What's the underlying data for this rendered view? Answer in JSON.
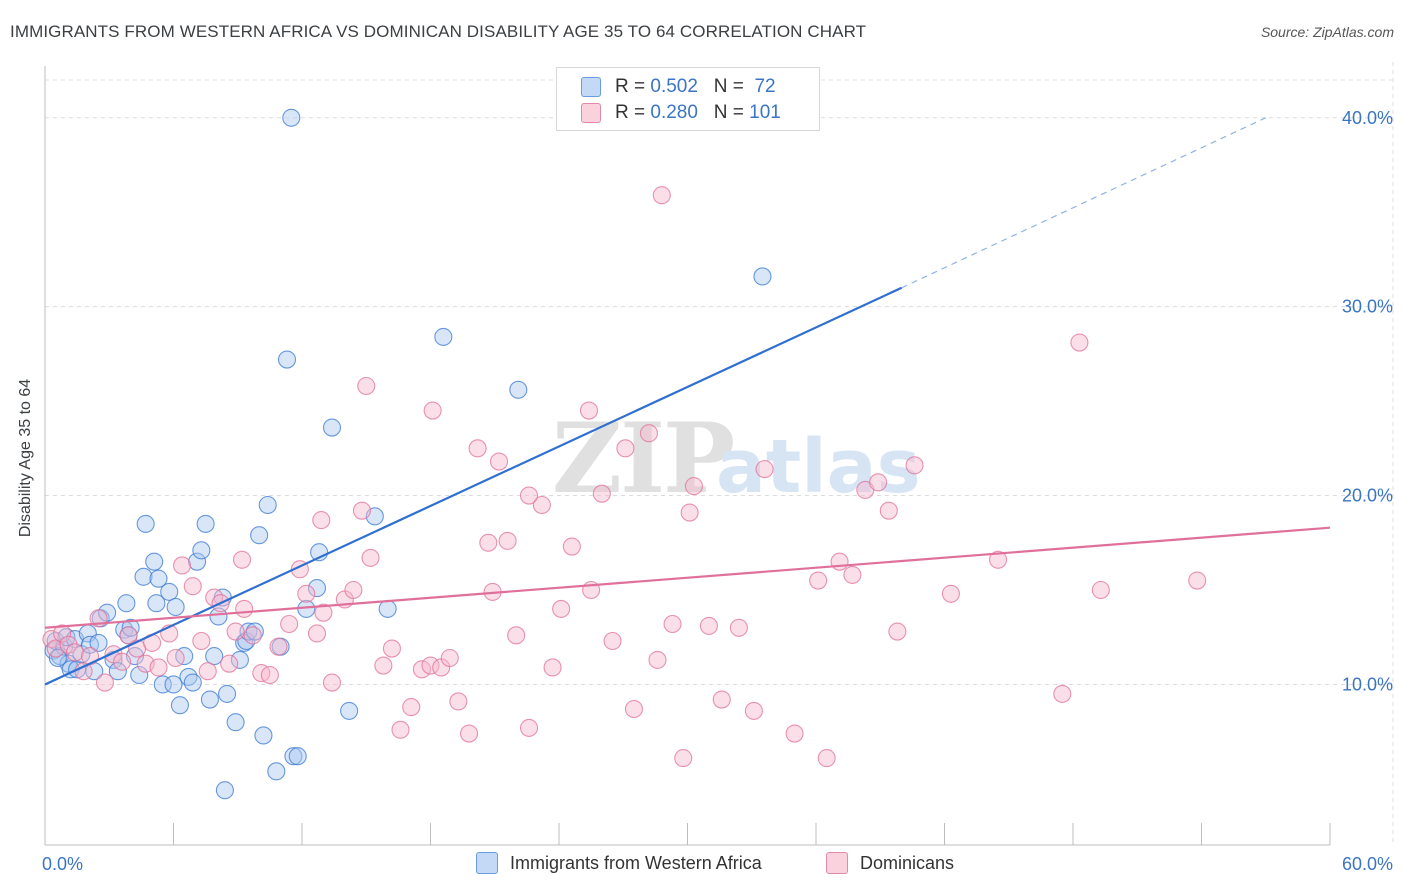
{
  "header": {
    "title": "IMMIGRANTS FROM WESTERN AFRICA VS DOMINICAN DISABILITY AGE 35 TO 64 CORRELATION CHART",
    "source": "Source: ZipAtlas.com"
  },
  "legend_top": {
    "rows": [
      {
        "r_label": "R =",
        "r_value": "0.502",
        "n_label": "N =",
        "n_value": "72",
        "color": "#a8c8f0"
      },
      {
        "r_label": "R =",
        "r_value": "0.280",
        "n_label": "N =",
        "n_value": "101",
        "color": "#f6b9cc"
      }
    ]
  },
  "legend_bottom": {
    "items": [
      {
        "label": "Immigrants from Western Africa",
        "color": "#a8c8f0"
      },
      {
        "label": "Dominicans",
        "color": "#f6b9cc"
      }
    ]
  },
  "watermark": {
    "zip": "ZIP",
    "atlas": "atlas"
  },
  "chart_data": {
    "type": "scatter",
    "title": "IMMIGRANTS FROM WESTERN AFRICA VS DOMINICAN DISABILITY AGE 35 TO 64 CORRELATION CHART",
    "xlabel": "",
    "ylabel": "Disability Age 35 to 64",
    "xlim": [
      0,
      60
    ],
    "ylim": [
      1.5,
      42.0
    ],
    "x_tick_labels": [
      "0.0%",
      "60.0%"
    ],
    "y_ticks": [
      10,
      20,
      30,
      40
    ],
    "y_tick_labels": [
      "10.0%",
      "20.0%",
      "30.0%",
      "40.0%"
    ],
    "grid": true,
    "legend_position": "bottom",
    "series": [
      {
        "name": "Immigrants from Western Africa",
        "color": "#3a78d4",
        "fill": "#a8c8f0",
        "r": 0.502,
        "n": 72,
        "trend": {
          "x0": 0,
          "y0": 10.0,
          "x1": 40.0,
          "y1": 31.0,
          "dash_x1": 57.0,
          "dash_y1": 40.0
        },
        "points": [
          [
            0.4,
            11.8
          ],
          [
            0.5,
            12.3
          ],
          [
            0.7,
            11.5
          ],
          [
            0.9,
            12.0
          ],
          [
            1.0,
            12.5
          ],
          [
            1.1,
            11.1
          ],
          [
            1.2,
            10.8
          ],
          [
            1.4,
            12.4
          ],
          [
            1.5,
            10.8
          ],
          [
            1.7,
            11.6
          ],
          [
            2.0,
            12.7
          ],
          [
            2.1,
            12.1
          ],
          [
            2.3,
            10.7
          ],
          [
            2.6,
            13.5
          ],
          [
            2.9,
            13.8
          ],
          [
            3.2,
            11.3
          ],
          [
            3.4,
            10.7
          ],
          [
            3.7,
            12.9
          ],
          [
            3.8,
            14.3
          ],
          [
            3.9,
            12.6
          ],
          [
            4.2,
            11.5
          ],
          [
            4.4,
            10.5
          ],
          [
            4.6,
            15.7
          ],
          [
            4.7,
            18.5
          ],
          [
            5.1,
            16.5
          ],
          [
            5.2,
            14.3
          ],
          [
            5.3,
            15.6
          ],
          [
            5.5,
            10.0
          ],
          [
            5.8,
            14.9
          ],
          [
            6.0,
            10.0
          ],
          [
            6.1,
            14.1
          ],
          [
            6.3,
            8.9
          ],
          [
            6.5,
            11.5
          ],
          [
            6.7,
            10.4
          ],
          [
            6.9,
            10.1
          ],
          [
            7.1,
            16.5
          ],
          [
            7.3,
            17.1
          ],
          [
            7.5,
            18.5
          ],
          [
            7.7,
            9.2
          ],
          [
            7.9,
            11.5
          ],
          [
            8.1,
            13.6
          ],
          [
            8.3,
            14.6
          ],
          [
            8.5,
            9.5
          ],
          [
            8.9,
            8.0
          ],
          [
            9.1,
            11.3
          ],
          [
            9.3,
            12.2
          ],
          [
            9.4,
            12.3
          ],
          [
            9.5,
            12.8
          ],
          [
            9.8,
            12.8
          ],
          [
            10.0,
            17.9
          ],
          [
            10.2,
            7.3
          ],
          [
            10.4,
            19.5
          ],
          [
            10.8,
            5.4
          ],
          [
            11.0,
            12.0
          ],
          [
            11.3,
            27.2
          ],
          [
            11.6,
            6.2
          ],
          [
            11.8,
            6.2
          ],
          [
            12.2,
            14.0
          ],
          [
            12.7,
            15.1
          ],
          [
            12.8,
            17.0
          ],
          [
            13.4,
            23.6
          ],
          [
            14.2,
            8.6
          ],
          [
            15.4,
            18.9
          ],
          [
            16.0,
            14.0
          ],
          [
            11.5,
            40.0
          ],
          [
            18.6,
            28.4
          ],
          [
            22.1,
            25.6
          ],
          [
            8.4,
            4.4
          ],
          [
            4.0,
            13.0
          ],
          [
            33.5,
            31.6
          ],
          [
            0.6,
            11.4
          ],
          [
            2.5,
            12.2
          ]
        ]
      },
      {
        "name": "Dominicans",
        "color": "#e0709a",
        "fill": "#f6b9cc",
        "r": 0.28,
        "n": 101,
        "trend": {
          "x0": 0,
          "y0": 13.0,
          "x1": 60.0,
          "y1": 18.3
        },
        "points": [
          [
            0.3,
            12.4
          ],
          [
            0.5,
            11.9
          ],
          [
            0.8,
            12.7
          ],
          [
            1.1,
            12.1
          ],
          [
            1.4,
            11.7
          ],
          [
            1.8,
            10.7
          ],
          [
            2.1,
            11.5
          ],
          [
            2.5,
            13.5
          ],
          [
            2.8,
            10.1
          ],
          [
            3.2,
            11.6
          ],
          [
            3.6,
            11.2
          ],
          [
            3.9,
            12.6
          ],
          [
            4.3,
            11.9
          ],
          [
            4.7,
            11.1
          ],
          [
            5.0,
            12.2
          ],
          [
            5.3,
            10.9
          ],
          [
            5.8,
            12.7
          ],
          [
            6.1,
            11.4
          ],
          [
            6.4,
            16.3
          ],
          [
            6.9,
            15.2
          ],
          [
            7.3,
            12.3
          ],
          [
            7.6,
            10.7
          ],
          [
            7.9,
            14.6
          ],
          [
            8.2,
            14.3
          ],
          [
            8.6,
            11.1
          ],
          [
            8.9,
            12.8
          ],
          [
            9.2,
            16.6
          ],
          [
            9.3,
            14.0
          ],
          [
            9.7,
            12.6
          ],
          [
            10.1,
            10.6
          ],
          [
            10.5,
            10.5
          ],
          [
            10.9,
            12.0
          ],
          [
            11.4,
            13.2
          ],
          [
            11.9,
            16.1
          ],
          [
            12.2,
            14.8
          ],
          [
            12.7,
            12.7
          ],
          [
            13.0,
            13.8
          ],
          [
            13.4,
            10.1
          ],
          [
            14.0,
            14.5
          ],
          [
            14.4,
            15.0
          ],
          [
            14.8,
            19.2
          ],
          [
            15.2,
            16.7
          ],
          [
            15.8,
            11.0
          ],
          [
            16.2,
            11.9
          ],
          [
            16.6,
            7.6
          ],
          [
            17.1,
            8.8
          ],
          [
            17.6,
            10.8
          ],
          [
            18.0,
            11.0
          ],
          [
            18.5,
            10.9
          ],
          [
            18.9,
            11.4
          ],
          [
            19.3,
            9.1
          ],
          [
            19.8,
            7.4
          ],
          [
            20.2,
            22.5
          ],
          [
            20.7,
            17.5
          ],
          [
            21.2,
            21.8
          ],
          [
            21.6,
            17.6
          ],
          [
            22.0,
            12.6
          ],
          [
            22.6,
            7.7
          ],
          [
            23.2,
            19.5
          ],
          [
            23.7,
            10.9
          ],
          [
            24.1,
            14.0
          ],
          [
            24.6,
            17.3
          ],
          [
            25.5,
            15.0
          ],
          [
            26.0,
            20.1
          ],
          [
            26.5,
            12.3
          ],
          [
            27.1,
            22.5
          ],
          [
            27.5,
            8.7
          ],
          [
            28.2,
            23.3
          ],
          [
            28.6,
            11.3
          ],
          [
            29.3,
            13.2
          ],
          [
            29.8,
            6.1
          ],
          [
            30.3,
            20.5
          ],
          [
            31.0,
            13.1
          ],
          [
            31.6,
            9.2
          ],
          [
            32.4,
            13.0
          ],
          [
            33.1,
            8.6
          ],
          [
            33.6,
            21.4
          ],
          [
            35.0,
            7.4
          ],
          [
            36.1,
            15.5
          ],
          [
            36.5,
            6.1
          ],
          [
            37.1,
            16.5
          ],
          [
            37.7,
            15.8
          ],
          [
            38.3,
            20.3
          ],
          [
            38.9,
            20.7
          ],
          [
            39.4,
            19.2
          ],
          [
            39.8,
            12.8
          ],
          [
            40.6,
            21.6
          ],
          [
            42.3,
            14.8
          ],
          [
            44.5,
            16.6
          ],
          [
            47.5,
            9.5
          ],
          [
            48.3,
            28.1
          ],
          [
            49.3,
            15.0
          ],
          [
            53.8,
            15.5
          ],
          [
            28.8,
            35.9
          ],
          [
            30.1,
            19.1
          ],
          [
            25.4,
            24.5
          ],
          [
            12.9,
            18.7
          ],
          [
            18.1,
            24.5
          ],
          [
            15.0,
            25.8
          ],
          [
            20.9,
            14.9
          ],
          [
            22.6,
            20.0
          ]
        ]
      }
    ]
  }
}
